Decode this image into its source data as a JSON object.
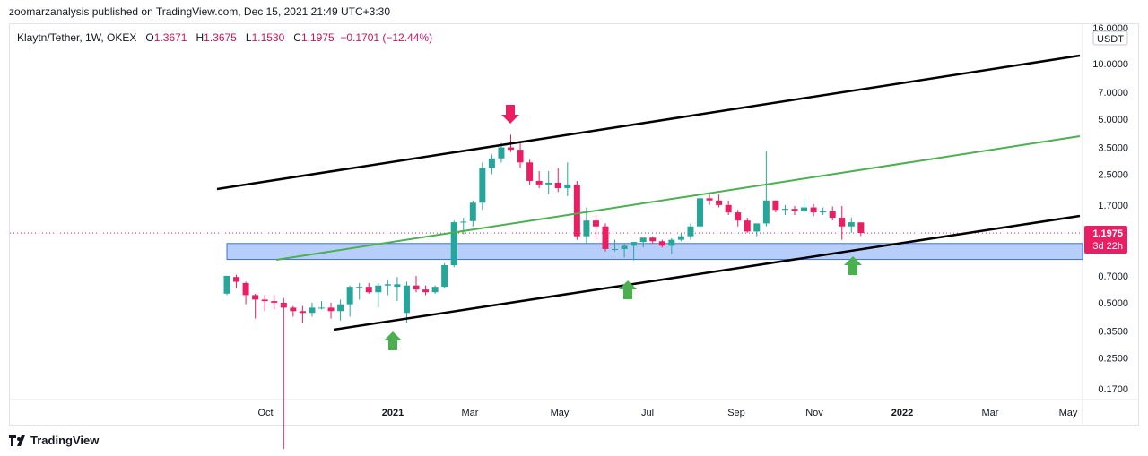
{
  "header": {
    "publisher_line": "zoomarzanalysis published on TradingView.com, Dec 15, 2021 21:49 UTC+3:30"
  },
  "legend": {
    "symbol": "Klaytn/Tether, 1W, OKEX",
    "open_label": "O",
    "open": "1.3671",
    "high_label": "H",
    "high": "1.3675",
    "low_label": "L",
    "low": "1.1530",
    "close_label": "C",
    "close": "1.1975",
    "change": "−0.1701 (−12.44%)"
  },
  "axis": {
    "currency": "USDT"
  },
  "price_tag": {
    "price": "1.1975",
    "countdown": "3d 22h"
  },
  "brand": {
    "name": "TradingView"
  },
  "colors": {
    "up": "#26a69a",
    "down": "#ef5350",
    "downFill": "#e91e63",
    "zone": "#7ea6f5",
    "channel": "#000000",
    "midline": "#4caf50",
    "arrow_up": "#4caf50",
    "arrow_down": "#e91e63"
  },
  "chart_data": {
    "type": "candlestick",
    "y_scale": "log",
    "y_ticks": [
      "16.0000",
      "10.0000",
      "7.0000",
      "5.0000",
      "3.5000",
      "2.5000",
      "1.7000",
      "0.7000",
      "0.5000",
      "0.3500",
      "0.2500",
      "0.1700"
    ],
    "x_ticks": [
      "Oct",
      "2021",
      "Mar",
      "May",
      "Jul",
      "Sep",
      "Nov",
      "2022",
      "Mar",
      "May"
    ],
    "candles_ohlc": [
      [
        0.56,
        0.7,
        0.55,
        0.7
      ],
      [
        0.69,
        0.71,
        0.6,
        0.65
      ],
      [
        0.64,
        0.65,
        0.49,
        0.55
      ],
      [
        0.55,
        0.56,
        0.41,
        0.52
      ],
      [
        0.52,
        0.55,
        0.45,
        0.51
      ],
      [
        0.51,
        0.55,
        0.46,
        0.5
      ],
      [
        0.5,
        0.53,
        0.08,
        0.47
      ],
      [
        0.47,
        0.48,
        0.42,
        0.45
      ],
      [
        0.45,
        0.48,
        0.39,
        0.44
      ],
      [
        0.44,
        0.5,
        0.42,
        0.47
      ],
      [
        0.47,
        0.51,
        0.46,
        0.47
      ],
      [
        0.47,
        0.5,
        0.41,
        0.45
      ],
      [
        0.45,
        0.52,
        0.4,
        0.49
      ],
      [
        0.49,
        0.62,
        0.42,
        0.61
      ],
      [
        0.61,
        0.64,
        0.52,
        0.61
      ],
      [
        0.61,
        0.64,
        0.56,
        0.57
      ],
      [
        0.57,
        0.64,
        0.47,
        0.62
      ],
      [
        0.62,
        0.67,
        0.55,
        0.63
      ],
      [
        0.61,
        0.69,
        0.51,
        0.63
      ],
      [
        0.44,
        0.65,
        0.39,
        0.62
      ],
      [
        0.62,
        0.7,
        0.57,
        0.59
      ],
      [
        0.59,
        0.62,
        0.55,
        0.57
      ],
      [
        0.57,
        0.62,
        0.56,
        0.61
      ],
      [
        0.61,
        0.82,
        0.6,
        0.8
      ],
      [
        0.8,
        1.4,
        0.78,
        1.37
      ],
      [
        1.37,
        1.45,
        1.18,
        1.38
      ],
      [
        1.39,
        1.8,
        1.3,
        1.75
      ],
      [
        1.75,
        2.9,
        1.6,
        2.7
      ],
      [
        2.7,
        3.2,
        2.5,
        3.05
      ],
      [
        3.05,
        3.7,
        2.9,
        3.5
      ],
      [
        3.5,
        4.1,
        3.3,
        3.4
      ],
      [
        3.4,
        3.7,
        2.7,
        2.9
      ],
      [
        2.9,
        3.0,
        2.2,
        2.3
      ],
      [
        2.3,
        2.6,
        2.1,
        2.2
      ],
      [
        2.2,
        2.6,
        1.95,
        2.25
      ],
      [
        2.25,
        2.7,
        2.0,
        2.1
      ],
      [
        2.1,
        2.9,
        1.9,
        2.2
      ],
      [
        2.2,
        2.3,
        1.1,
        1.15
      ],
      [
        1.15,
        1.65,
        1.05,
        1.4
      ],
      [
        1.4,
        1.5,
        1.1,
        1.3
      ],
      [
        1.3,
        1.35,
        0.95,
        0.98
      ],
      [
        0.98,
        1.1,
        0.95,
        0.98
      ],
      [
        0.98,
        1.05,
        0.88,
        1.02
      ],
      [
        1.02,
        1.06,
        0.85,
        1.07
      ],
      [
        1.07,
        1.12,
        1.0,
        1.13
      ],
      [
        1.13,
        1.15,
        1.05,
        1.08
      ],
      [
        1.08,
        1.1,
        1.0,
        1.02
      ],
      [
        1.02,
        1.12,
        0.92,
        1.1
      ],
      [
        1.1,
        1.2,
        1.08,
        1.15
      ],
      [
        1.15,
        1.35,
        1.1,
        1.3
      ],
      [
        1.3,
        1.9,
        1.25,
        1.85
      ],
      [
        1.85,
        1.95,
        1.7,
        1.8
      ],
      [
        1.8,
        1.95,
        1.65,
        1.7
      ],
      [
        1.7,
        1.8,
        1.5,
        1.55
      ],
      [
        1.55,
        1.6,
        1.3,
        1.4
      ],
      [
        1.4,
        1.45,
        1.2,
        1.22
      ],
      [
        1.22,
        1.35,
        1.15,
        1.35
      ],
      [
        1.35,
        3.35,
        1.3,
        1.8
      ],
      [
        1.8,
        1.8,
        1.55,
        1.6
      ],
      [
        1.6,
        1.7,
        1.5,
        1.62
      ],
      [
        1.62,
        1.68,
        1.5,
        1.58
      ],
      [
        1.58,
        1.85,
        1.55,
        1.65
      ],
      [
        1.65,
        1.72,
        1.48,
        1.55
      ],
      [
        1.55,
        1.65,
        1.5,
        1.58
      ],
      [
        1.58,
        1.67,
        1.4,
        1.45
      ],
      [
        1.45,
        1.68,
        1.1,
        1.3
      ],
      [
        1.3,
        1.45,
        1.2,
        1.37
      ],
      [
        1.367,
        1.3675,
        1.153,
        1.1975
      ]
    ],
    "demand_zone": {
      "low": 0.86,
      "high": 1.05
    },
    "current_price": 1.1975
  }
}
